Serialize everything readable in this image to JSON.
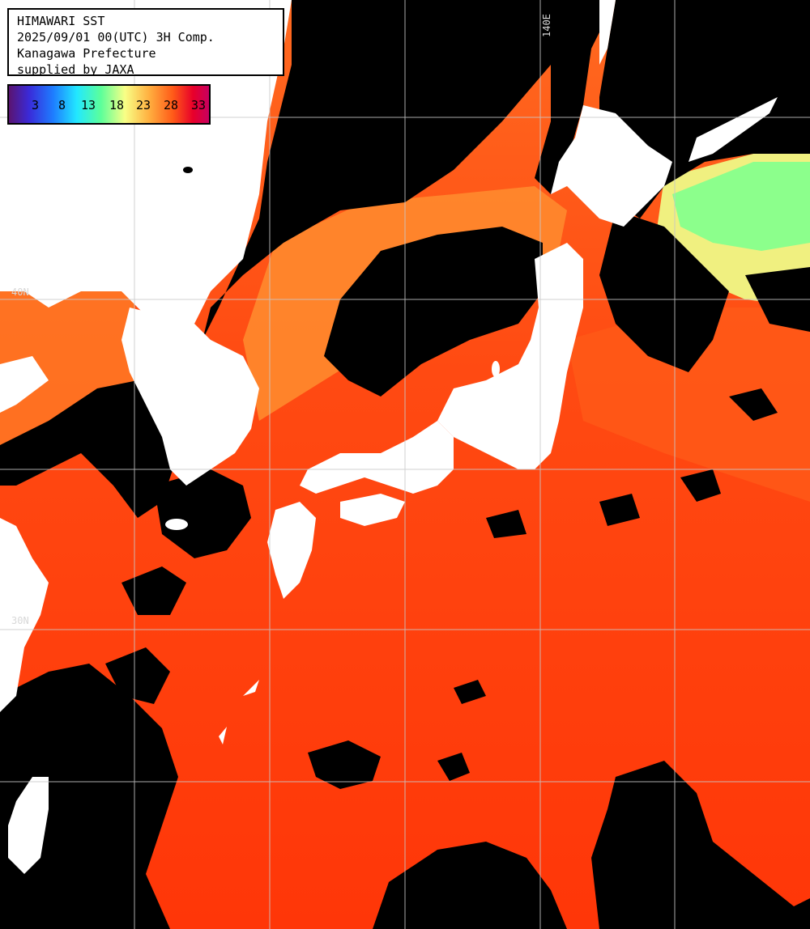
{
  "header": {
    "line1": "HIMAWARI SST",
    "line2": "2025/09/01 00(UTC) 3H Comp.",
    "line3": "Kanagawa Prefecture",
    "line4": "supplied by JAXA"
  },
  "color_scale": {
    "labels": [
      "3",
      "8",
      "13",
      "18",
      "23",
      "28",
      "33"
    ],
    "colors": [
      "#5a1470",
      "#3a2ad8",
      "#1e7cff",
      "#22e8ff",
      "#5cff9a",
      "#f8ff86",
      "#ffb040",
      "#ff5a18",
      "#e8002a",
      "#c80060"
    ]
  },
  "grid_labels": {
    "lon_140": "140E",
    "lat_40": "40N",
    "lat_30": "30N"
  },
  "palette": {
    "land": "#ffffff",
    "no_data": "#000000",
    "sea_warm": "#ff3a0a",
    "sea_mid": "#ff7a28",
    "sea_cool": "#ffb050",
    "sea_cold": "#7cff8a",
    "grid": "#c8c8c8"
  }
}
